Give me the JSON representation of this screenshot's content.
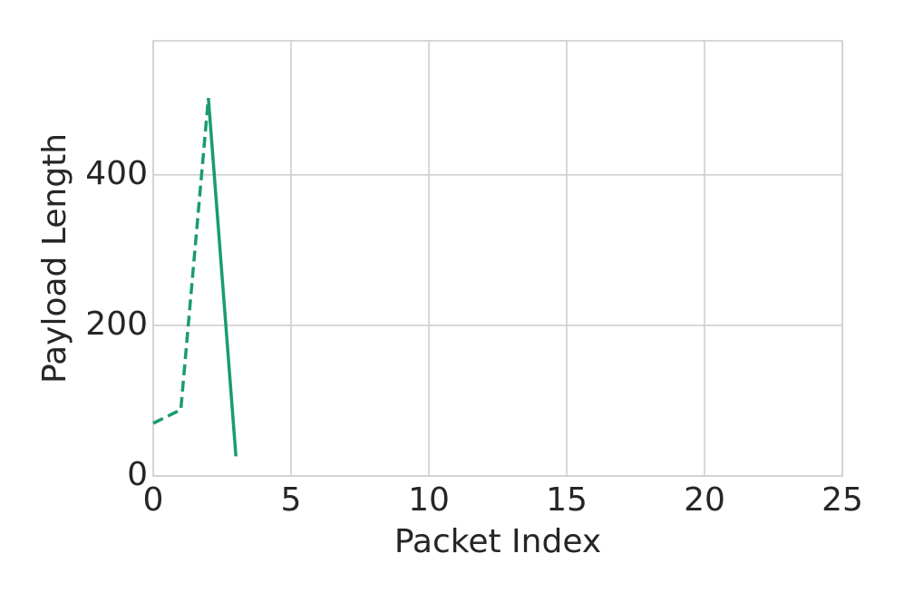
{
  "chart_data": {
    "type": "line",
    "x_label": "Packet Index",
    "y_label": "Payload Length",
    "xlim": [
      0,
      25
    ],
    "xticks": [
      0,
      5,
      10,
      15,
      20,
      25
    ],
    "ylim": [
      0,
      578
    ],
    "yticks": [
      0,
      200,
      400
    ],
    "grid": true,
    "series": [
      {
        "color": "#1a9a76",
        "dash": true,
        "x": [
          0,
          1,
          2
        ],
        "values": [
          70,
          88,
          502
        ]
      },
      {
        "color": "#1a9a76",
        "dash": false,
        "x": [
          2,
          3
        ],
        "values": [
          502,
          26
        ]
      }
    ]
  }
}
